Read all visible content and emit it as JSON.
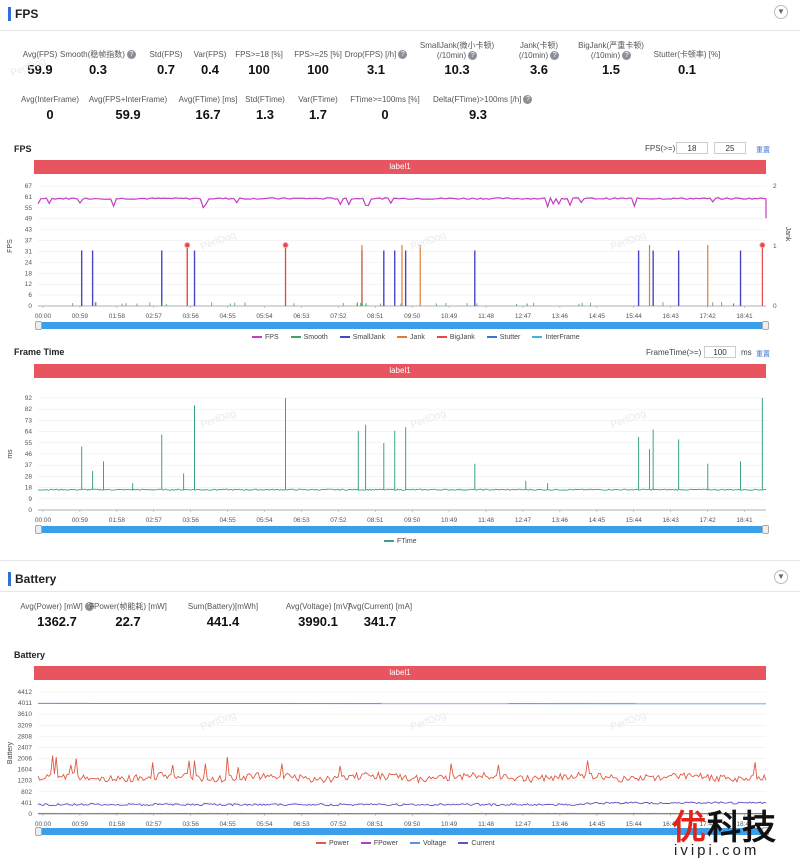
{
  "fps_section": {
    "title": "FPS",
    "metrics_row1": [
      {
        "label": "Avg(FPS)",
        "value": "59.9",
        "help": false
      },
      {
        "label": "Smooth(稳帧指数)",
        "value": "0.3",
        "help": true
      },
      {
        "label": "Std(FPS)",
        "value": "0.7",
        "help": false
      },
      {
        "label": "Var(FPS)",
        "value": "0.4",
        "help": false
      },
      {
        "label": "FPS>=18 [%]",
        "value": "100",
        "help": false
      },
      {
        "label": "FPS>=25 [%]",
        "value": "100",
        "help": false
      },
      {
        "label": "Drop(FPS) [/h]",
        "value": "3.1",
        "help": true
      },
      {
        "label": "SmallJank(微小卡顿)",
        "label2": "(/10min)",
        "value": "10.3",
        "help": true
      },
      {
        "label": "Jank(卡顿)",
        "label2": "(/10min)",
        "value": "3.6",
        "help": true
      },
      {
        "label": "BigJank(严重卡顿)",
        "label2": "(/10min)",
        "value": "1.5",
        "help": true
      },
      {
        "label": "Stutter(卡顿率) [%]",
        "value": "0.1",
        "help": false
      }
    ],
    "metrics_row2": [
      {
        "label": "Avg(InterFrame)",
        "value": "0",
        "help": false
      },
      {
        "label": "Avg(FPS+InterFrame)",
        "value": "59.9",
        "help": false
      },
      {
        "label": "Avg(FTime) [ms]",
        "value": "16.7",
        "help": false
      },
      {
        "label": "Std(FTime)",
        "value": "1.3",
        "help": false
      },
      {
        "label": "Var(FTime)",
        "value": "1.7",
        "help": false
      },
      {
        "label": "FTime>=100ms [%]",
        "value": "0",
        "help": false
      },
      {
        "label": "Delta(FTime)>100ms [/h]",
        "value": "9.3",
        "help": true
      }
    ]
  },
  "fps_chart": {
    "title": "FPS",
    "control_label": "FPS(>=)",
    "input1": "18",
    "input2": "25",
    "reset": "重置",
    "banner": "label1",
    "y_ticks": [
      "67",
      "61",
      "55",
      "49",
      "43",
      "37",
      "31",
      "24",
      "18",
      "12",
      "6",
      "0"
    ],
    "y2_ticks": [
      "2",
      "1",
      "0"
    ],
    "y_title": "FPS",
    "y2_title": "Jank",
    "legend": [
      {
        "name": "FPS",
        "color": "#c23ec2"
      },
      {
        "name": "Smooth",
        "color": "#3fa45b"
      },
      {
        "name": "SmallJank",
        "color": "#4646c8"
      },
      {
        "name": "Jank",
        "color": "#e07b39"
      },
      {
        "name": "BigJank",
        "color": "#e84545"
      },
      {
        "name": "Stutter",
        "color": "#3a74d6"
      },
      {
        "name": "InterFrame",
        "color": "#3fb4e0"
      }
    ]
  },
  "ftime_chart": {
    "title": "Frame Time",
    "control_label": "FrameTime(>=)",
    "input1": "100",
    "unit": "ms",
    "reset": "重置",
    "banner": "label1",
    "y_ticks": [
      "92",
      "82",
      "73",
      "64",
      "55",
      "46",
      "37",
      "28",
      "18",
      "9",
      "0"
    ],
    "y_title": "ms",
    "legend": [
      {
        "name": "FTime",
        "color": "#3aa57a"
      }
    ]
  },
  "x_ticks": [
    "00:00",
    "00:59",
    "01:58",
    "02:57",
    "03:56",
    "04:55",
    "05:54",
    "06:53",
    "07:52",
    "08:51",
    "09:50",
    "10:49",
    "11:48",
    "12:47",
    "13:46",
    "14:45",
    "15:44",
    "16:43",
    "17:42",
    "18:41"
  ],
  "battery_section": {
    "title": "Battery",
    "metrics": [
      {
        "label": "Avg(Power) [mW]",
        "value": "1362.7",
        "help": true
      },
      {
        "label": "FPower(帧能耗) [mW]",
        "value": "22.7",
        "help": false
      },
      {
        "label": "Sum(Battery)[mWh]",
        "value": "441.4",
        "help": false
      },
      {
        "label": "Avg(Voltage) [mV]",
        "value": "3990.1",
        "help": false
      },
      {
        "label": "Avg(Current) [mA]",
        "value": "341.7",
        "help": false
      }
    ]
  },
  "battery_chart": {
    "title": "Battery",
    "banner": "label1",
    "y_ticks": [
      "4412",
      "4011",
      "3610",
      "3209",
      "2808",
      "2407",
      "2006",
      "1604",
      "1203",
      "802",
      "401",
      "0"
    ],
    "y_title": "Battery",
    "legend": [
      {
        "name": "Power",
        "color": "#e05a44"
      },
      {
        "name": "FPower",
        "color": "#b03ec2"
      },
      {
        "name": "Voltage",
        "color": "#5b8fe0"
      },
      {
        "name": "Current",
        "color": "#6a4cc2"
      }
    ]
  },
  "watermark": "PerfDog",
  "logo": {
    "main": "优科技",
    "sub": "ivipi.com"
  }
}
